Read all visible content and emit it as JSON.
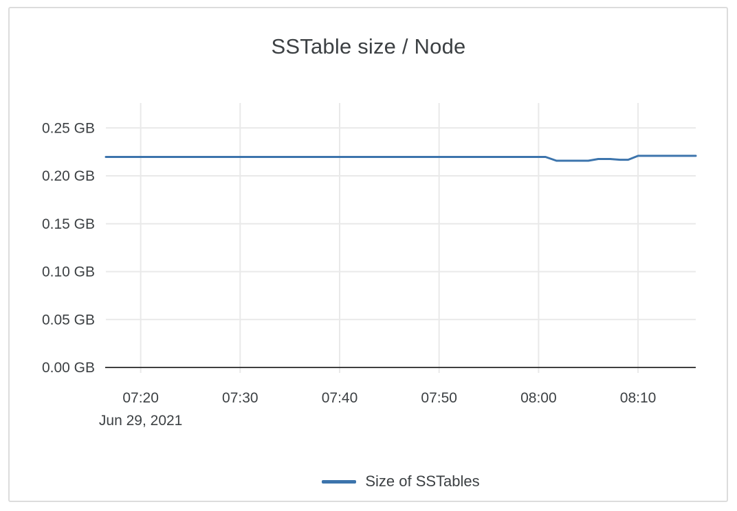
{
  "colors": {
    "line": "#3c74ac",
    "grid": "#e9e9e9",
    "axis": "#3f3f3f",
    "text": "#3c4043",
    "card_border": "#dcdcdc",
    "background": "#ffffff"
  },
  "chart_data": {
    "type": "line",
    "title": "SSTable size / Node",
    "xlabel": "",
    "ylabel": "",
    "x_date": "Jun 29, 2021",
    "grid": true,
    "legend_position": "bottom-center",
    "y_unit": "GB",
    "ylim": [
      0,
      0.276
    ],
    "xlim_time": [
      "07:16:30",
      "08:15:48"
    ],
    "y_ticks": [
      {
        "v": 0.0,
        "label": "0.00 GB"
      },
      {
        "v": 0.05,
        "label": "0.05 GB"
      },
      {
        "v": 0.1,
        "label": "0.10 GB"
      },
      {
        "v": 0.15,
        "label": "0.15 GB"
      },
      {
        "v": 0.2,
        "label": "0.20 GB"
      },
      {
        "v": 0.25,
        "label": "0.25 GB"
      }
    ],
    "x_ticks": [
      {
        "t": "07:20",
        "label": "07:20"
      },
      {
        "t": "07:30",
        "label": "07:30"
      },
      {
        "t": "07:40",
        "label": "07:40"
      },
      {
        "t": "07:50",
        "label": "07:50"
      },
      {
        "t": "08:00",
        "label": "08:00"
      },
      {
        "t": "08:10",
        "label": "08:10"
      }
    ],
    "series": [
      {
        "name": "Size of SSTables",
        "color": "#3c74ac",
        "points": [
          {
            "t": "07:16:30",
            "gb": 0.2197
          },
          {
            "t": "08:00:42",
            "gb": 0.2197
          },
          {
            "t": "08:01:48",
            "gb": 0.2158
          },
          {
            "t": "08:05:00",
            "gb": 0.2158
          },
          {
            "t": "08:06:00",
            "gb": 0.2176
          },
          {
            "t": "08:07:12",
            "gb": 0.2176
          },
          {
            "t": "08:08:12",
            "gb": 0.2168
          },
          {
            "t": "08:09:00",
            "gb": 0.2168
          },
          {
            "t": "08:10:00",
            "gb": 0.2209
          },
          {
            "t": "08:15:48",
            "gb": 0.2209
          }
        ]
      }
    ]
  }
}
